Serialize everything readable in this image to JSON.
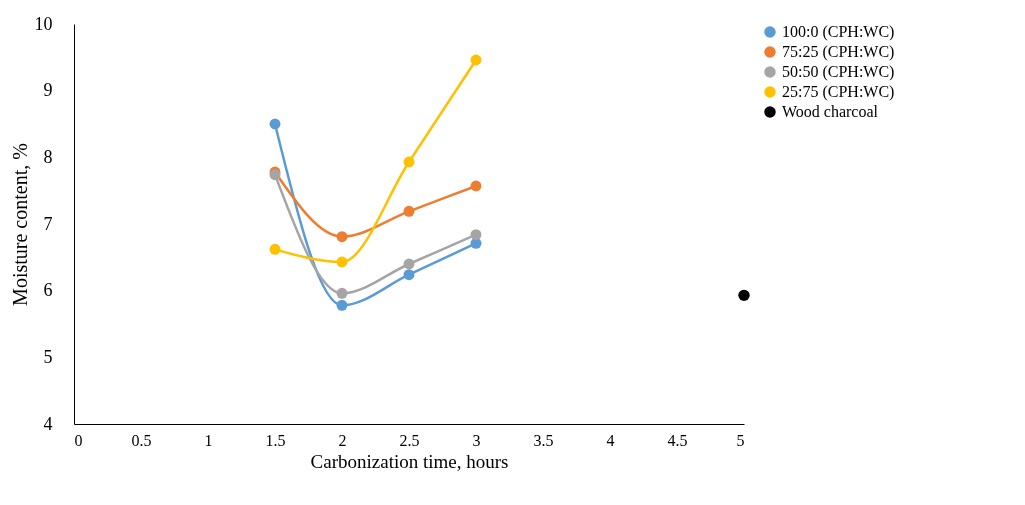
{
  "chart_data": {
    "type": "line",
    "xlabel": "Carbonization time, hours",
    "ylabel": "Moisture content, %",
    "xlim": [
      0,
      5
    ],
    "xticks": [
      0,
      0.5,
      1,
      1.5,
      2,
      2.5,
      3,
      3.5,
      4,
      4.5,
      5
    ],
    "ylim": [
      4,
      10
    ],
    "yticks": [
      4,
      5,
      6,
      7,
      8,
      9,
      10
    ],
    "grid": false,
    "legend": "right",
    "marker": "circle",
    "line_style": "solid",
    "series": [
      {
        "name": "100:0 (CPH:WC)",
        "color": "#5b9bd5",
        "x": [
          1.5,
          2,
          2.5,
          3
        ],
        "values": [
          8.5,
          5.78,
          6.24,
          6.71
        ]
      },
      {
        "name": "75:25 (CPH:WC)",
        "color": "#ed7d31",
        "x": [
          1.5,
          2,
          2.5,
          3
        ],
        "values": [
          7.78,
          6.81,
          7.19,
          7.57
        ]
      },
      {
        "name": "50:50 (CPH:WC)",
        "color": "#a5a5a5",
        "x": [
          1.5,
          2,
          2.5,
          3
        ],
        "values": [
          7.74,
          5.96,
          6.4,
          6.84
        ]
      },
      {
        "name": "25:75 (CPH:WC)",
        "color": "#ffc000",
        "x": [
          1.5,
          2,
          2.5,
          3
        ],
        "values": [
          6.62,
          6.43,
          7.93,
          9.46
        ]
      },
      {
        "name": "Wood charcoal",
        "color": "#000000",
        "type": "scatter",
        "x": [
          5
        ],
        "values": [
          5.93
        ]
      }
    ]
  }
}
